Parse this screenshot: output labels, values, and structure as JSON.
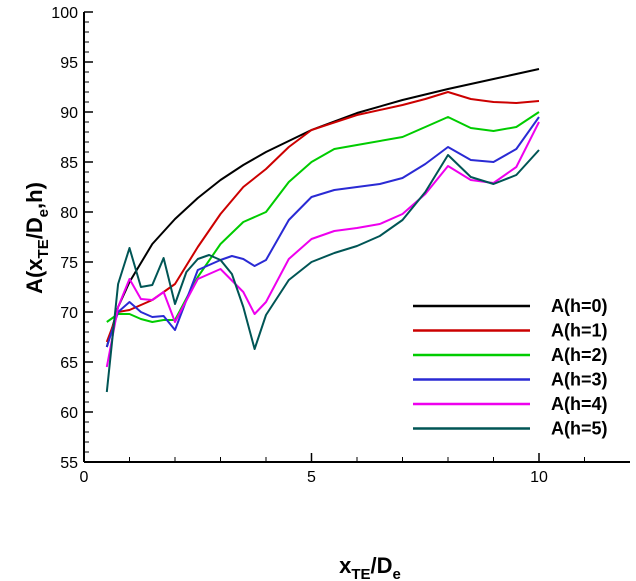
{
  "chart_data": {
    "type": "line",
    "title": "",
    "xlabel": {
      "main": "x",
      "sub": "TE",
      "mid": "/D",
      "sub2": "e"
    },
    "ylabel": {
      "pre": "A(x",
      "sub": "TE",
      "mid": "/D",
      "sub2": "e",
      "post": ",h)"
    },
    "xlim": [
      0,
      12
    ],
    "ylim": [
      55,
      100
    ],
    "xticks": [
      0,
      5,
      10
    ],
    "yticks": [
      55,
      60,
      65,
      70,
      75,
      80,
      85,
      90,
      95,
      100
    ],
    "grid": false,
    "legend_position": "lower-right",
    "series": [
      {
        "name": "A(h=0)",
        "color": "#000000",
        "x": [
          0.5,
          0.75,
          1.0,
          1.5,
          2.0,
          2.5,
          3.0,
          3.5,
          4.0,
          5.0,
          6.0,
          7.0,
          8.0,
          9.0,
          10.0
        ],
        "y": [
          66.5,
          70.5,
          73.0,
          76.8,
          79.3,
          81.4,
          83.2,
          84.7,
          86.0,
          88.2,
          89.9,
          91.2,
          92.3,
          93.3,
          94.3
        ]
      },
      {
        "name": "A(h=1)",
        "color": "#cc0000",
        "x": [
          0.5,
          0.75,
          1.0,
          1.5,
          2.0,
          2.5,
          3.0,
          3.5,
          4.0,
          4.5,
          5.0,
          6.0,
          7.0,
          7.5,
          8.0,
          8.5,
          9.0,
          9.5,
          10.0
        ],
        "y": [
          67.0,
          70.0,
          70.2,
          71.2,
          72.8,
          76.5,
          79.8,
          82.5,
          84.3,
          86.5,
          88.2,
          89.7,
          90.7,
          91.3,
          92.0,
          91.3,
          91.0,
          90.9,
          91.1
        ]
      },
      {
        "name": "A(h=2)",
        "color": "#00cc00",
        "x": [
          0.5,
          0.75,
          1.0,
          1.25,
          1.5,
          1.75,
          2.0,
          2.5,
          3.0,
          3.5,
          4.0,
          4.5,
          5.0,
          5.5,
          6.0,
          7.0,
          7.5,
          8.0,
          8.5,
          9.0,
          9.5,
          10.0
        ],
        "y": [
          69.0,
          69.8,
          69.8,
          69.3,
          69.0,
          69.2,
          69.2,
          73.5,
          76.8,
          79.0,
          80.0,
          83.0,
          85.0,
          86.3,
          86.7,
          87.5,
          88.5,
          89.5,
          88.4,
          88.1,
          88.5,
          90.0
        ]
      },
      {
        "name": "A(h=3)",
        "color": "#2a2ad4",
        "x": [
          0.5,
          0.75,
          1.0,
          1.25,
          1.5,
          1.75,
          2.0,
          2.5,
          3.0,
          3.25,
          3.5,
          3.75,
          4.0,
          4.5,
          5.0,
          5.5,
          6.0,
          6.5,
          7.0,
          7.5,
          8.0,
          8.5,
          9.0,
          9.5,
          10.0
        ],
        "y": [
          66.5,
          70.0,
          71.0,
          70.0,
          69.5,
          69.6,
          68.2,
          74.2,
          75.2,
          75.6,
          75.3,
          74.6,
          75.2,
          79.2,
          81.5,
          82.2,
          82.5,
          82.8,
          83.4,
          84.8,
          86.5,
          85.2,
          85.0,
          86.3,
          89.5
        ]
      },
      {
        "name": "A(h=4)",
        "color": "#ee00ee",
        "x": [
          0.5,
          0.75,
          1.0,
          1.25,
          1.5,
          1.75,
          2.0,
          2.5,
          3.0,
          3.5,
          3.75,
          4.0,
          4.5,
          5.0,
          5.5,
          6.0,
          6.5,
          7.0,
          7.5,
          8.0,
          8.5,
          9.0,
          9.5,
          10.0
        ],
        "y": [
          64.5,
          70.5,
          73.3,
          71.3,
          71.2,
          72.0,
          69.0,
          73.3,
          74.3,
          72.0,
          69.8,
          71.0,
          75.3,
          77.3,
          78.1,
          78.4,
          78.8,
          79.8,
          81.8,
          84.6,
          83.2,
          82.9,
          84.5,
          89.0
        ]
      },
      {
        "name": "A(h=5)",
        "color": "#005555",
        "x": [
          0.5,
          0.75,
          1.0,
          1.25,
          1.5,
          1.75,
          2.0,
          2.25,
          2.5,
          2.75,
          3.0,
          3.25,
          3.5,
          3.75,
          4.0,
          4.5,
          5.0,
          5.5,
          6.0,
          6.5,
          7.0,
          7.5,
          8.0,
          8.5,
          9.0,
          9.5,
          10.0
        ],
        "y": [
          62.0,
          72.8,
          76.4,
          72.5,
          72.7,
          75.4,
          70.8,
          74.0,
          75.3,
          75.7,
          75.2,
          73.8,
          70.5,
          66.3,
          69.7,
          73.2,
          75.0,
          75.9,
          76.6,
          77.6,
          79.2,
          82.0,
          85.7,
          83.5,
          82.8,
          83.7,
          86.2
        ]
      }
    ]
  }
}
